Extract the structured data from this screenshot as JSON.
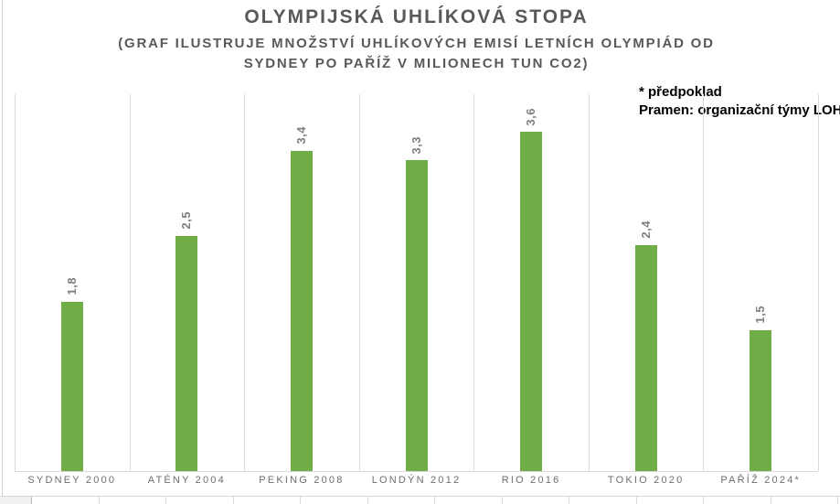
{
  "chart_data": {
    "type": "bar",
    "title": "OLYMPIJSKÁ UHLÍKOVÁ STOPA",
    "subtitle_line1": "(GRAF ILUSTRUJE MNOŽSTVÍ UHLÍKOVÝCH EMISÍ LETNÍCH OLYMPIÁD OD",
    "subtitle_line2": "SYDNEY PO PAŘÍŽ V MILIONECH TUN CO2)",
    "categories": [
      "SYDNEY 2000",
      "ATÉNY 2004",
      "PEKING 2008",
      "LONDÝN 2012",
      "RIO 2016",
      "TOKIO 2020",
      "PAŘÍŽ 2024*"
    ],
    "values": [
      1.8,
      2.5,
      3.4,
      3.3,
      3.6,
      2.4,
      1.5
    ],
    "value_labels": [
      "1,8",
      "2,5",
      "3,4",
      "3,3",
      "3,6",
      "2,4",
      "1,5"
    ],
    "xlabel": "",
    "ylabel": "",
    "ylim": [
      0,
      4
    ],
    "legend": "none",
    "grid": "vertical category separators only",
    "bar_color": "#70ad47",
    "value_label_rotation": "90deg bottom-to-top",
    "annotations": {
      "assumption": "* předpoklad",
      "source": "Pramen: organizační týmy LOH"
    }
  }
}
